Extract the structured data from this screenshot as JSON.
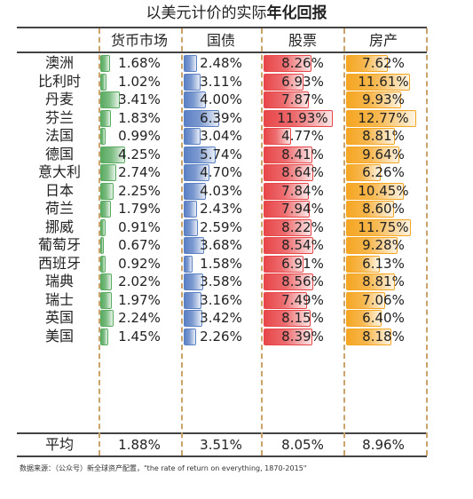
{
  "title": {
    "prefix": "以美元计价的实际",
    "bold": "年化回报"
  },
  "source": "数据来源：（公众号）新全球资产配置，\"the rate of return on everything, 1870-2015\"",
  "colors": {
    "money": "#5aab62",
    "bond": "#5b80c4",
    "stock": "#e8474a",
    "property": "#f5a623"
  },
  "chart_data": {
    "type": "table",
    "title": "以美元计价的实际年化回报",
    "columns": [
      "货币市场",
      "国债",
      "股票",
      "房产"
    ],
    "rows": [
      {
        "country": "澳洲",
        "values": [
          "1.68%",
          "2.48%",
          "8.26%",
          "7.62%"
        ]
      },
      {
        "country": "比利时",
        "values": [
          "1.02%",
          "3.11%",
          "6.93%",
          "11.61%"
        ]
      },
      {
        "country": "丹麦",
        "values": [
          "3.41%",
          "4.00%",
          "7.87%",
          "9.93%"
        ]
      },
      {
        "country": "芬兰",
        "values": [
          "1.83%",
          "6.39%",
          "11.93%",
          "12.77%"
        ]
      },
      {
        "country": "法国",
        "values": [
          "0.99%",
          "3.04%",
          "4.77%",
          "8.81%"
        ]
      },
      {
        "country": "德国",
        "values": [
          "4.25%",
          "5.74%",
          "8.41%",
          "9.64%"
        ]
      },
      {
        "country": "意大利",
        "values": [
          "2.74%",
          "4.70%",
          "8.64%",
          "6.26%"
        ]
      },
      {
        "country": "日本",
        "values": [
          "2.25%",
          "4.03%",
          "7.84%",
          "10.45%"
        ]
      },
      {
        "country": "荷兰",
        "values": [
          "1.79%",
          "2.43%",
          "7.94%",
          "8.60%"
        ]
      },
      {
        "country": "挪威",
        "values": [
          "0.91%",
          "2.59%",
          "8.22%",
          "11.75%"
        ]
      },
      {
        "country": "葡萄牙",
        "values": [
          "0.67%",
          "3.68%",
          "8.54%",
          "9.28%"
        ]
      },
      {
        "country": "西班牙",
        "values": [
          "0.92%",
          "1.58%",
          "6.91%",
          "6.13%"
        ]
      },
      {
        "country": "瑞典",
        "values": [
          "2.02%",
          "3.58%",
          "8.56%",
          "8.81%"
        ]
      },
      {
        "country": "瑞士",
        "values": [
          "1.97%",
          "3.16%",
          "7.49%",
          "7.06%"
        ]
      },
      {
        "country": "英国",
        "values": [
          "2.24%",
          "3.42%",
          "8.15%",
          "6.40%"
        ]
      },
      {
        "country": "美国",
        "values": [
          "1.45%",
          "2.26%",
          "8.39%",
          "8.18%"
        ]
      }
    ],
    "average": {
      "label": "平均",
      "values": [
        "1.88%",
        "3.51%",
        "8.05%",
        "8.96%"
      ]
    }
  }
}
